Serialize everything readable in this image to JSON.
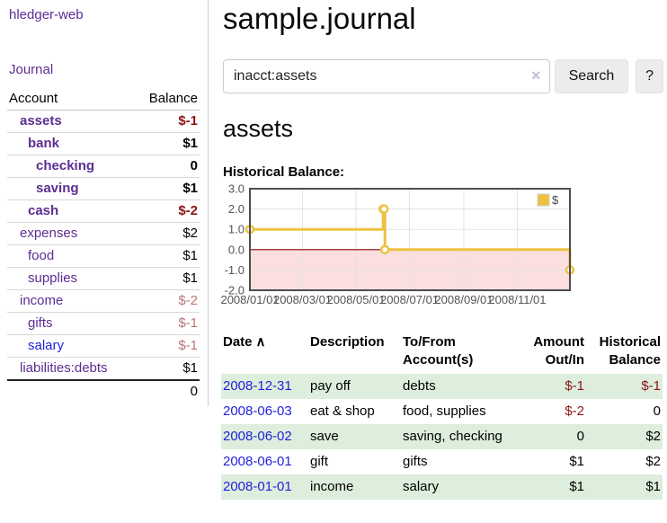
{
  "colors": {
    "link_purple": "#5c2d91",
    "link_blue": "#2222dd",
    "negative_strong": "#8b1414",
    "negative_muted": "#b97575",
    "row_stripe_green": "#ddeedc",
    "chart_line": "#edc240",
    "chart_zero_line": "#8b0000",
    "chart_negative_fill": "#fbdede",
    "sidebar_divider": "#cccccc"
  },
  "sidebar": {
    "app_title": "hledger-web",
    "nav_journal": "Journal",
    "accounts_table": {
      "headers": {
        "account": "Account",
        "balance": "Balance"
      },
      "rows": [
        {
          "name": "assets",
          "depth": 1,
          "bold": true,
          "name_style": "purple",
          "balance": "$-1",
          "balance_style": "neg-strong"
        },
        {
          "name": "bank",
          "depth": 2,
          "bold": true,
          "name_style": "purple",
          "balance": "$1",
          "balance_style": ""
        },
        {
          "name": "checking",
          "depth": 3,
          "bold": true,
          "name_style": "purple",
          "balance": "0",
          "balance_style": ""
        },
        {
          "name": "saving",
          "depth": 3,
          "bold": true,
          "name_style": "purple",
          "balance": "$1",
          "balance_style": ""
        },
        {
          "name": "cash",
          "depth": 2,
          "bold": true,
          "name_style": "purple",
          "balance": "$-2",
          "balance_style": "neg-strong"
        },
        {
          "name": "expenses",
          "depth": 1,
          "bold": false,
          "name_style": "purple",
          "balance": "$2",
          "balance_style": ""
        },
        {
          "name": "food",
          "depth": 2,
          "bold": false,
          "name_style": "purple",
          "balance": "$1",
          "balance_style": ""
        },
        {
          "name": "supplies",
          "depth": 2,
          "bold": false,
          "name_style": "purple",
          "balance": "$1",
          "balance_style": ""
        },
        {
          "name": "income",
          "depth": 1,
          "bold": false,
          "name_style": "purple",
          "balance": "$-2",
          "balance_style": "neg-soft"
        },
        {
          "name": "gifts",
          "depth": 2,
          "bold": false,
          "name_style": "purple",
          "balance": "$-1",
          "balance_style": "neg-soft"
        },
        {
          "name": "salary",
          "depth": 2,
          "bold": false,
          "name_style": "blue",
          "balance": "$-1",
          "balance_style": "neg-soft"
        },
        {
          "name": "liabilities:debts",
          "depth": 1,
          "bold": false,
          "name_style": "purple",
          "balance": "$1",
          "balance_style": ""
        }
      ],
      "total": "0"
    }
  },
  "header": {
    "title": "sample.journal"
  },
  "search": {
    "value": "inacct:assets",
    "clear_icon": "×",
    "button_label": "Search",
    "help_label": "?"
  },
  "account_page": {
    "heading": "assets",
    "chart_title": "Historical Balance:"
  },
  "chart_data": {
    "type": "line",
    "step": true,
    "title": "Historical Balance",
    "series": [
      {
        "name": "$",
        "color": "#edc240",
        "points": [
          [
            "2008-01-01",
            1.0
          ],
          [
            "2008-06-01",
            2.0
          ],
          [
            "2008-06-02",
            2.0
          ],
          [
            "2008-06-03",
            0.0
          ],
          [
            "2008-12-31",
            -1.0
          ]
        ]
      }
    ],
    "x_range": [
      "2008/01/01",
      "2008/12/31"
    ],
    "x_tick_labels": [
      "2008/01/01",
      "2008/03/01",
      "2008/05/01",
      "2008/07/01",
      "2008/09/01",
      "2008/11/01"
    ],
    "y_tick_labels": [
      "3.0",
      "2.0",
      "1.0",
      "0.0",
      "-1.0",
      "-2.0"
    ],
    "y_ticks": [
      3,
      2,
      1,
      0,
      -1,
      -2
    ],
    "ylim": [
      -2,
      3
    ],
    "grid": true,
    "legend": {
      "label": "$",
      "position": "top-right"
    },
    "zero_line_color": "#8b0000",
    "negative_region_fill": "#fbdede"
  },
  "register": {
    "headers": {
      "date": "Date",
      "sort_icon": "∧",
      "description": "Description",
      "accounts": "To/From Account(s)",
      "amount": "Amount Out/In",
      "balance": "Historical Balance"
    },
    "rows": [
      {
        "date": "2008-12-31",
        "description": "pay off",
        "accounts": "debts",
        "amount": "$-1",
        "amount_style": "neg-strong",
        "balance": "$-1",
        "balance_style": "neg-strong"
      },
      {
        "date": "2008-06-03",
        "description": "eat & shop",
        "accounts": "food, supplies",
        "amount": "$-2",
        "amount_style": "neg-strong",
        "balance": "0",
        "balance_style": ""
      },
      {
        "date": "2008-06-02",
        "description": "save",
        "accounts": "saving, checking",
        "amount": "0",
        "amount_style": "",
        "balance": "$2",
        "balance_style": ""
      },
      {
        "date": "2008-06-01",
        "description": "gift",
        "accounts": "gifts",
        "amount": "$1",
        "amount_style": "",
        "balance": "$2",
        "balance_style": ""
      },
      {
        "date": "2008-01-01",
        "description": "income",
        "accounts": "salary",
        "amount": "$1",
        "amount_style": "",
        "balance": "$1",
        "balance_style": ""
      }
    ]
  }
}
